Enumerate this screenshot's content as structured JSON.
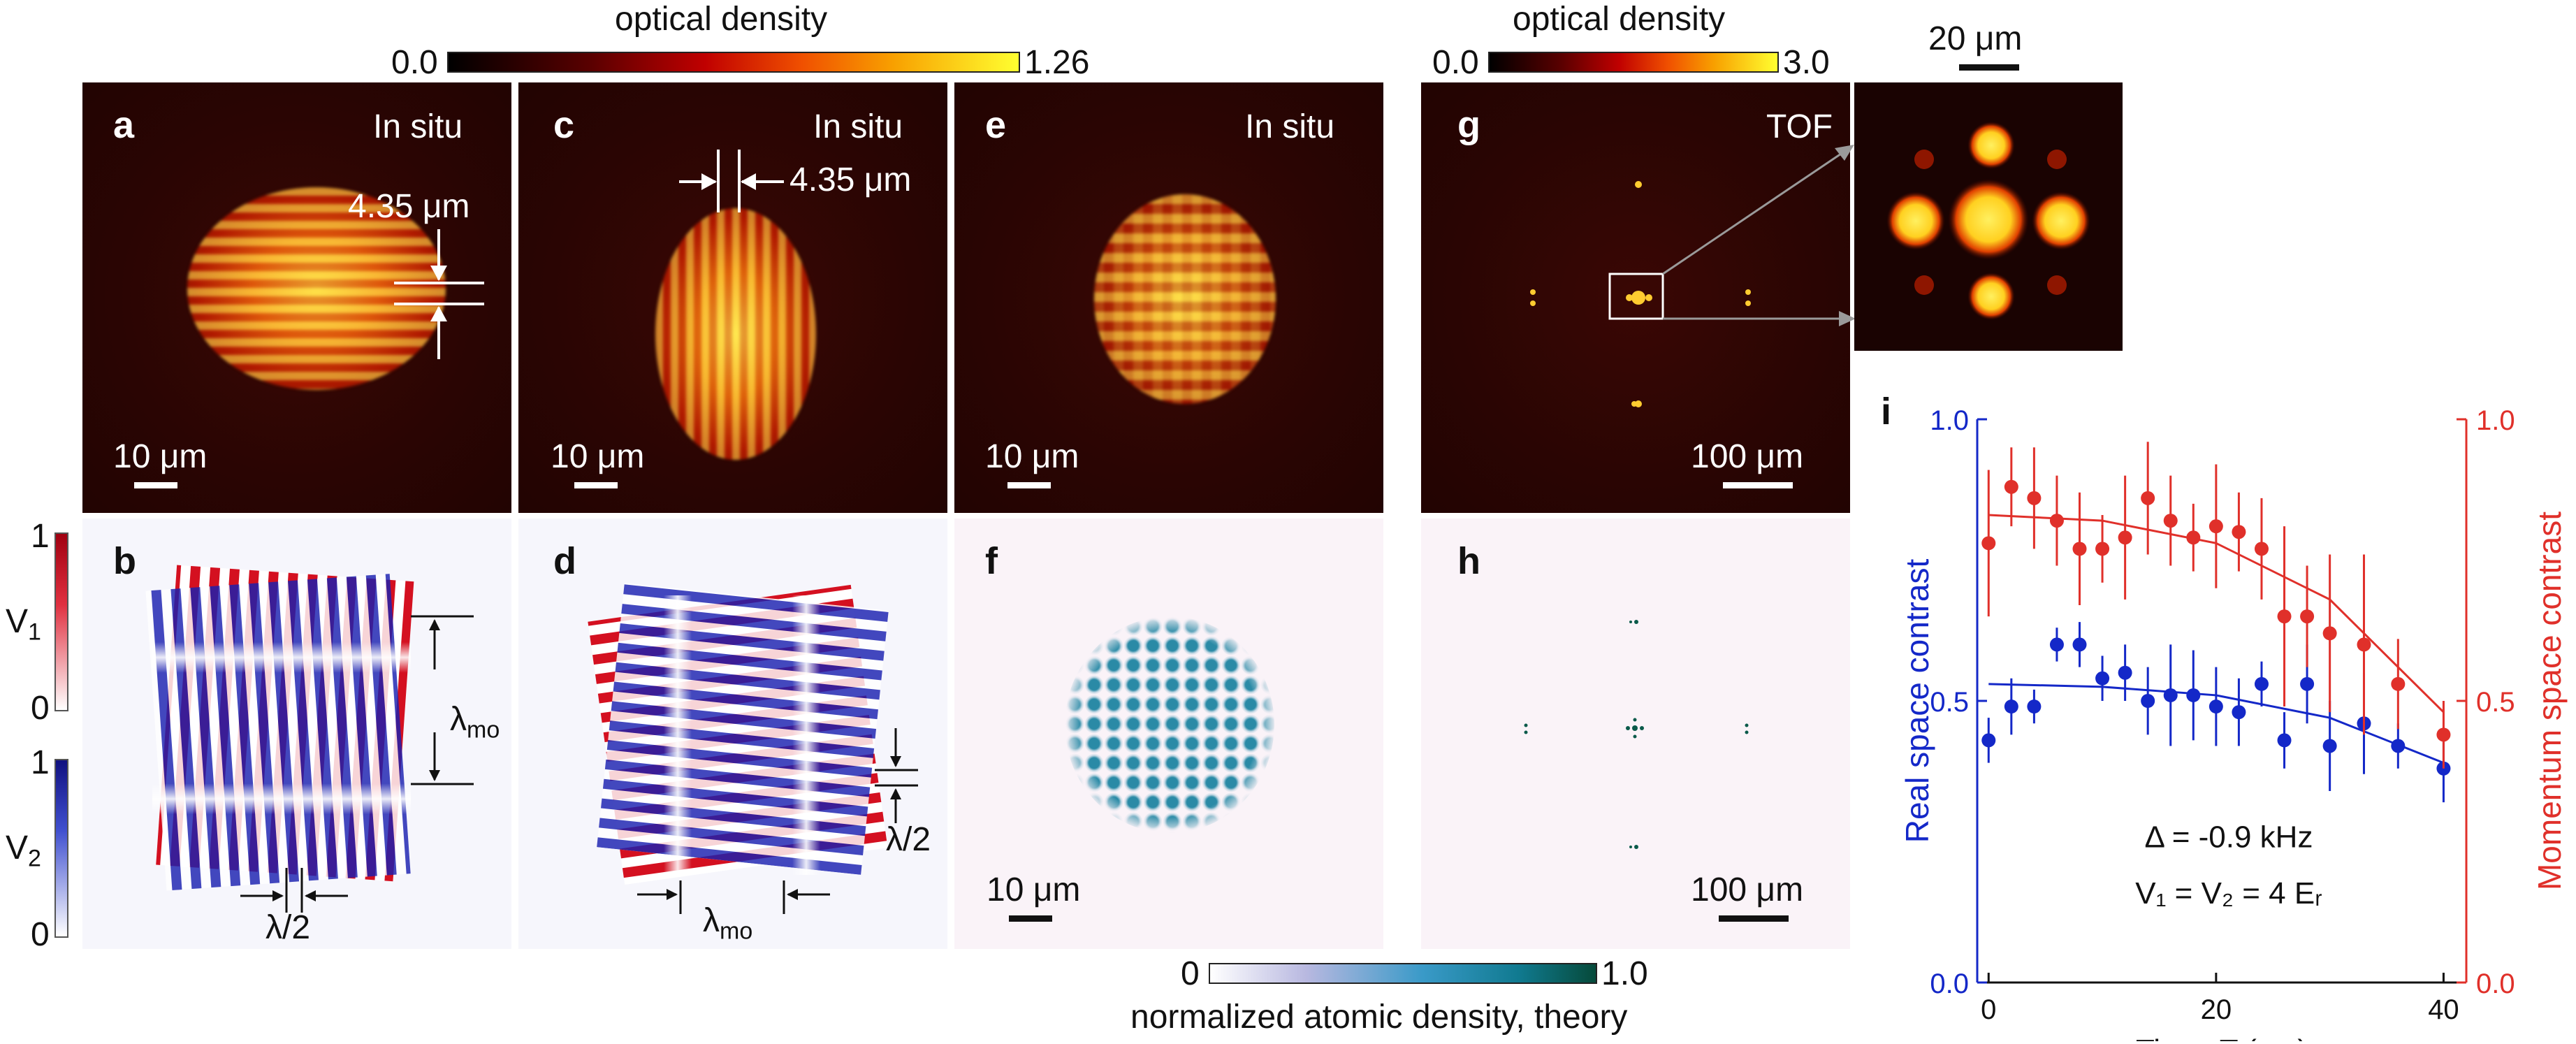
{
  "colorbar_top_left": {
    "title": "optical density",
    "min": "0.0",
    "max": "1.26"
  },
  "colorbar_top_right": {
    "title": "optical density",
    "min": "0.0",
    "max": "3.0"
  },
  "colorbar_bottom": {
    "title": "normalized atomic density, theory",
    "min": "0",
    "max": "1.0"
  },
  "zoom_scale": "20 μm",
  "panels": {
    "a": {
      "label": "a",
      "title": "In situ",
      "scale": "10 μm",
      "spacing": "4.35 μm"
    },
    "b": {
      "label": "b",
      "lambda_mo": "λ",
      "lambda_mo_sub": "mo",
      "lambda_half": "λ/2"
    },
    "c": {
      "label": "c",
      "title": "In situ",
      "scale": "10 μm",
      "spacing": "4.35 μm"
    },
    "d": {
      "label": "d",
      "lambda_mo": "λ",
      "lambda_mo_sub": "mo",
      "lambda_half": "λ/2"
    },
    "e": {
      "label": "e",
      "title": "In situ",
      "scale": "10 μm"
    },
    "f": {
      "label": "f",
      "scale": "10 μm"
    },
    "g": {
      "label": "g",
      "title": "TOF",
      "scale": "100 μm"
    },
    "h": {
      "label": "h",
      "scale": "100 μm"
    },
    "i": {
      "label": "i"
    }
  },
  "potential_bars": {
    "v1": {
      "label": "V",
      "sub": "1",
      "max": "1",
      "min": "0",
      "color": "#c0001a"
    },
    "v2": {
      "label": "V",
      "sub": "2",
      "max": "1",
      "min": "0",
      "color": "#1a1a9c"
    }
  },
  "chart_data": {
    "type": "scatter",
    "title": "",
    "xlabel": "Time, T (ms)",
    "ylabel_left": "Real space contrast",
    "ylabel_right": "Momentum space contrast",
    "xlim": [
      -1,
      42
    ],
    "ylim": [
      0,
      1
    ],
    "xticks": [
      "0",
      "20",
      "40"
    ],
    "yticks_left": [
      "0.0",
      "0.5",
      "1.0"
    ],
    "yticks_right": [
      "0.0",
      "0.5",
      "1.0"
    ],
    "annotation_1": "Δ = -0.9 kHz",
    "annotation_2": "V₁ = V₂ = 4 Eᵣ",
    "series": [
      {
        "name": "Real space contrast",
        "color": "#1428c8",
        "x": [
          0,
          2,
          4,
          6,
          8,
          10,
          12,
          14,
          16,
          18,
          20,
          22,
          24,
          26,
          28,
          30,
          33,
          36,
          40
        ],
        "y": [
          0.43,
          0.49,
          0.49,
          0.6,
          0.6,
          0.54,
          0.55,
          0.5,
          0.51,
          0.51,
          0.49,
          0.48,
          0.53,
          0.43,
          0.53,
          0.42,
          0.46,
          0.42,
          0.38
        ],
        "err": [
          0.04,
          0.05,
          0.03,
          0.03,
          0.04,
          0.04,
          0.05,
          0.06,
          0.09,
          0.08,
          0.07,
          0.06,
          0.04,
          0.05,
          0.07,
          0.08,
          0.09,
          0.04,
          0.06
        ],
        "fit": [
          [
            0,
            0.53
          ],
          [
            10,
            0.525
          ],
          [
            20,
            0.51
          ],
          [
            30,
            0.47
          ],
          [
            40,
            0.39
          ]
        ]
      },
      {
        "name": "Momentum space contrast",
        "color": "#e0302a",
        "x": [
          0,
          2,
          4,
          6,
          8,
          10,
          12,
          14,
          16,
          18,
          20,
          22,
          24,
          26,
          28,
          30,
          33,
          36,
          40
        ],
        "y": [
          0.78,
          0.88,
          0.86,
          0.82,
          0.77,
          0.77,
          0.79,
          0.86,
          0.82,
          0.79,
          0.81,
          0.8,
          0.77,
          0.65,
          0.65,
          0.62,
          0.6,
          0.53,
          0.44
        ],
        "err": [
          0.13,
          0.07,
          0.09,
          0.08,
          0.1,
          0.06,
          0.11,
          0.1,
          0.08,
          0.06,
          0.11,
          0.07,
          0.09,
          0.16,
          0.09,
          0.14,
          0.16,
          0.08,
          0.06
        ],
        "fit": [
          [
            0,
            0.83
          ],
          [
            10,
            0.82
          ],
          [
            20,
            0.78
          ],
          [
            30,
            0.68
          ],
          [
            40,
            0.48
          ]
        ]
      }
    ]
  }
}
